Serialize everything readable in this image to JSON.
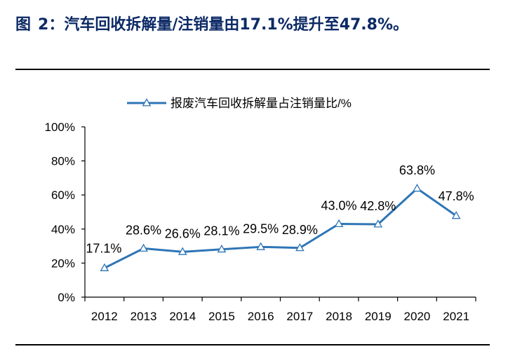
{
  "figure": {
    "label": "图",
    "number": "2：",
    "title": "汽车回收拆解量/注销量由17.1%提升至47.8%。"
  },
  "chart_data": {
    "type": "line",
    "categories": [
      "2012",
      "2013",
      "2014",
      "2015",
      "2016",
      "2017",
      "2018",
      "2019",
      "2020",
      "2021"
    ],
    "series": [
      {
        "name": "报废汽车回收拆解量占注销量比/%",
        "values": [
          17.1,
          28.6,
          26.6,
          28.1,
          29.5,
          28.9,
          43.0,
          42.8,
          63.8,
          47.8
        ],
        "labels": [
          "17.1%",
          "28.6%",
          "26.6%",
          "28.1%",
          "29.5%",
          "28.9%",
          "43.0%",
          "42.8%",
          "63.8%",
          "47.8%"
        ],
        "color": "#2e75b6",
        "marker": "triangle-open"
      }
    ],
    "yticks": [
      "0%",
      "20%",
      "40%",
      "60%",
      "80%",
      "100%"
    ],
    "ylim": [
      0,
      100
    ],
    "legend_position": "top",
    "grid": false
  }
}
